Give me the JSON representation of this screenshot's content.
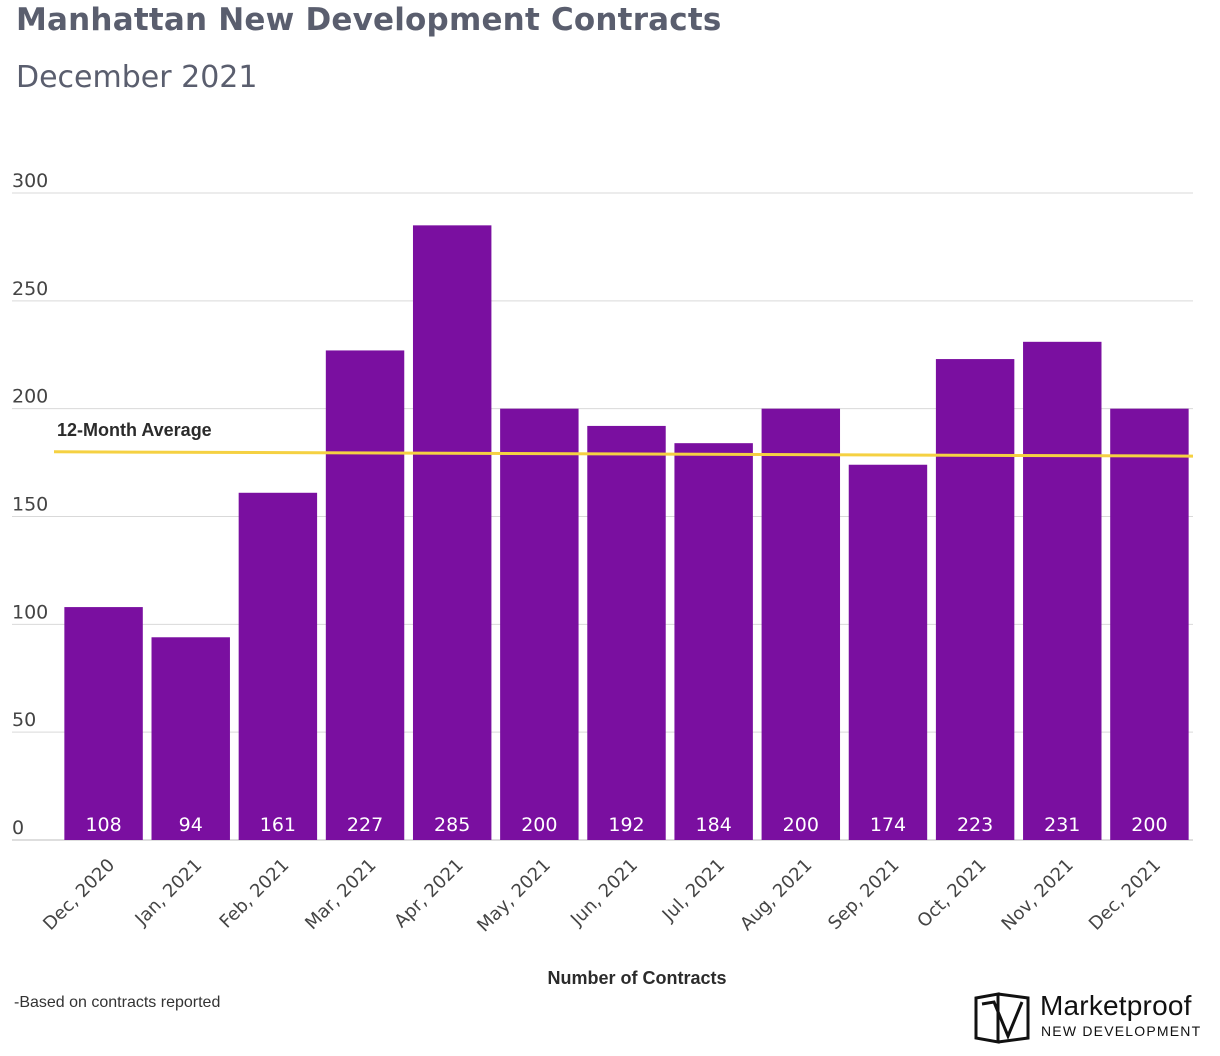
{
  "title": "Manhattan New Development Contracts",
  "subtitle": "December 2021",
  "footnote": "-Based on contracts reported",
  "logo": {
    "name": "Marketproof",
    "tagline": "NEW DEVELOPMENT"
  },
  "colors": {
    "bar": "#7a0fa0",
    "average": "#f5d142",
    "grid": "#d9d9d9",
    "text": "#333333"
  },
  "chart_data": {
    "type": "bar",
    "xlabel": "Number of Contracts",
    "ylabel": "",
    "ylim": [
      0,
      300
    ],
    "yticks": [
      0,
      50,
      100,
      150,
      200,
      250,
      300
    ],
    "categories": [
      "Dec, 2020",
      "Jan, 2021",
      "Feb, 2021",
      "Mar, 2021",
      "Apr, 2021",
      "May, 2021",
      "Jun, 2021",
      "Jul, 2021",
      "Aug, 2021",
      "Sep, 2021",
      "Oct, 2021",
      "Nov, 2021",
      "Dec, 2021"
    ],
    "values": [
      108,
      94,
      161,
      227,
      285,
      200,
      192,
      184,
      200,
      174,
      223,
      231,
      200
    ],
    "average_line": {
      "label": "12-Month Average",
      "start": 180,
      "end": 178
    },
    "grid": true
  }
}
